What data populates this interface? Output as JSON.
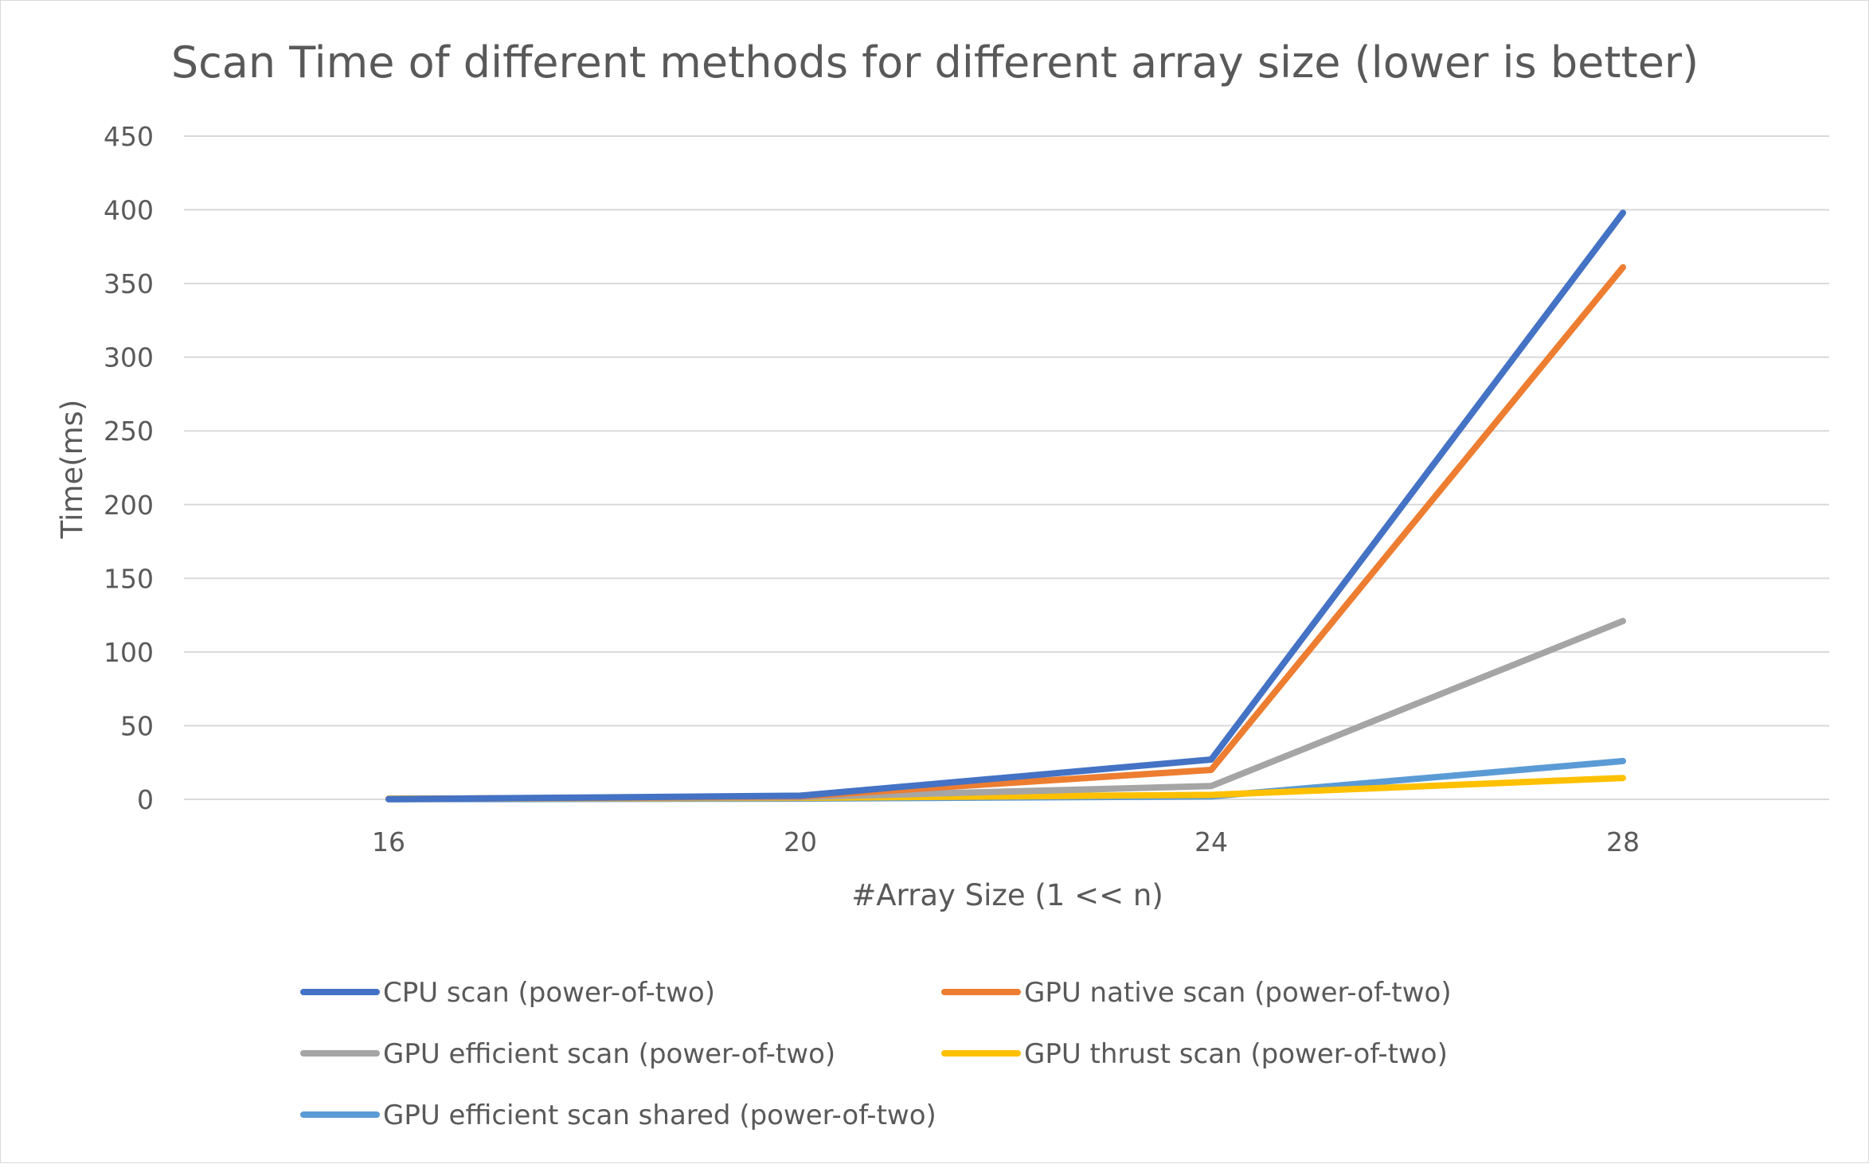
{
  "chart_data": {
    "type": "line",
    "title": "Scan Time of different methods for different array size (lower is better)",
    "xlabel": "#Array Size (1 << n)",
    "ylabel": "Time(ms)",
    "categories": [
      "16",
      "20",
      "24",
      "28"
    ],
    "ylim": [
      0,
      450
    ],
    "yticks": [
      "0",
      "50",
      "100",
      "150",
      "200",
      "250",
      "300",
      "350",
      "400",
      "450"
    ],
    "grid": true,
    "legend_position": "bottom",
    "series": [
      {
        "name": "CPU scan (power-of-two)",
        "color": "#4472c4",
        "values": [
          0.1,
          2.5,
          27,
          398
        ]
      },
      {
        "name": "GPU native scan (power-of-two)",
        "color": "#ed7d31",
        "values": [
          0.2,
          2,
          20,
          361
        ]
      },
      {
        "name": "GPU efficient scan (power-of-two)",
        "color": "#a5a5a5",
        "values": [
          0.3,
          1.5,
          9,
          121
        ]
      },
      {
        "name": "GPU thrust scan (power-of-two)",
        "color": "#ffc000",
        "values": [
          0.5,
          1,
          3,
          14.5
        ]
      },
      {
        "name": "GPU efficient scan shared (power-of-two)",
        "color": "#5b9bd5",
        "values": [
          0.1,
          0.5,
          2,
          26
        ]
      }
    ]
  }
}
